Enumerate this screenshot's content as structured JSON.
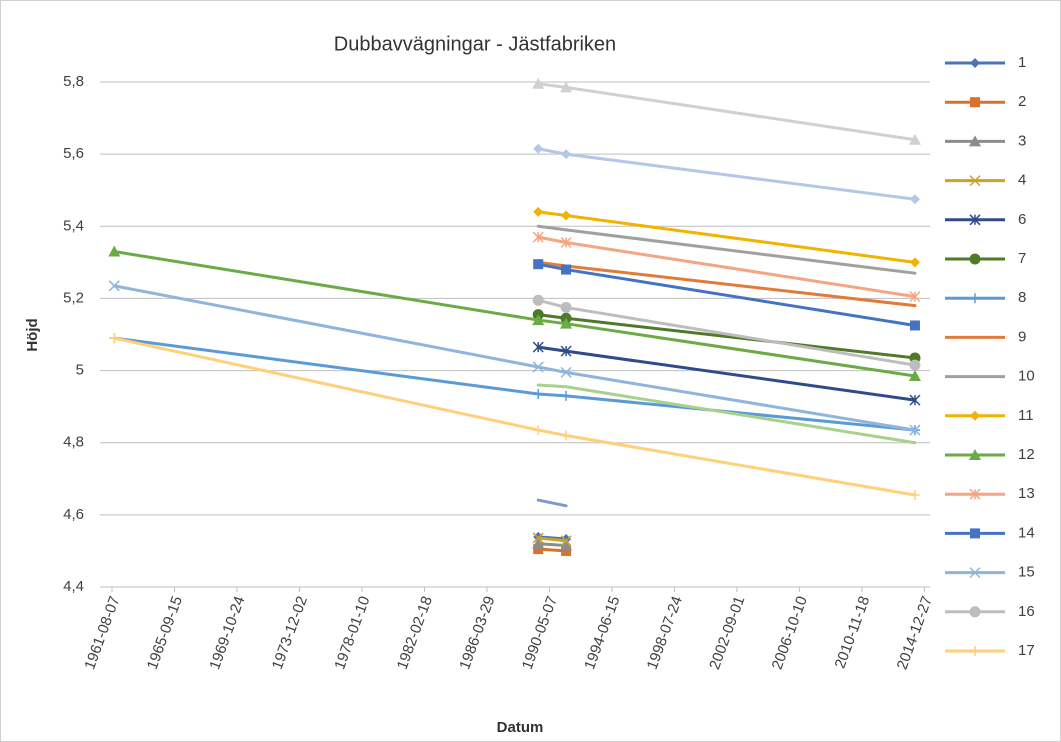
{
  "chart_data": {
    "type": "line",
    "title": "Dubbavvägningar - Jästfabriken",
    "x_label": "Datum",
    "y_label": "Höjd",
    "x": [
      "1961-10-01",
      "1989-08-10",
      "1991-06-10",
      "2014-05-14"
    ],
    "xlim": [
      "1961-08-07",
      "2015-05-10"
    ],
    "xticks": [
      "1961-08-07",
      "1965-09-15",
      "1969-10-24",
      "1973-12-02",
      "1978-01-10",
      "1982-02-18",
      "1986-03-29",
      "1990-05-07",
      "1994-06-15",
      "1998-07-24",
      "2002-09-01",
      "2006-10-10",
      "2010-11-18",
      "2014-12-27"
    ],
    "ylim": [
      4.4,
      5.8
    ],
    "yticks": [
      {
        "value": 4.4,
        "label": "4,4"
      },
      {
        "value": 4.6,
        "label": "4,6"
      },
      {
        "value": 4.8,
        "label": "4,8"
      },
      5,
      {
        "value": 5.2,
        "label": "5,2"
      },
      {
        "value": 5.4,
        "label": "5,4"
      },
      {
        "value": 5.6,
        "label": "5,6"
      },
      {
        "value": 5.8,
        "label": "5,8"
      }
    ],
    "grid": true,
    "legend": "right",
    "series": [
      {
        "name": "1",
        "color": "#4a74b8",
        "marker": "diamond",
        "values": [
          null,
          4.539,
          4.533,
          null
        ]
      },
      {
        "name": "2",
        "color": "#d9702c",
        "marker": "square",
        "values": [
          null,
          4.505,
          4.5,
          null
        ]
      },
      {
        "name": "3",
        "color": "#8c8c8c",
        "marker": "triangle",
        "values": [
          null,
          4.52,
          4.515,
          null
        ]
      },
      {
        "name": "4",
        "color": "#c9a227",
        "marker": "x",
        "values": [
          null,
          4.536,
          4.528,
          null
        ]
      },
      {
        "name": "6",
        "color": "#2f4b8a",
        "marker": "star",
        "values": [
          null,
          5.065,
          5.054,
          4.918
        ]
      },
      {
        "name": "7",
        "color": "#4f7a28",
        "marker": "circle",
        "values": [
          null,
          5.155,
          5.145,
          5.035
        ]
      },
      {
        "name": "8",
        "color": "#5b9bd5",
        "marker": "plus",
        "values": [
          5.09,
          4.935,
          4.93,
          4.835
        ]
      },
      {
        "name": "9",
        "color": "#e07b39",
        "marker": "none",
        "values": [
          null,
          5.3,
          5.29,
          5.18
        ]
      },
      {
        "name": "10",
        "color": "#a0a0a0",
        "marker": "none",
        "values": [
          null,
          5.4,
          5.39,
          5.27
        ]
      },
      {
        "name": "11",
        "color": "#f2b200",
        "marker": "diamond",
        "values": [
          null,
          5.44,
          5.43,
          5.3
        ]
      },
      {
        "name": "12",
        "color": "#6aab45",
        "marker": "triangle",
        "values": [
          5.33,
          5.14,
          5.13,
          4.985
        ]
      },
      {
        "name": "13",
        "color": "#f4a582",
        "marker": "star",
        "values": [
          null,
          5.37,
          5.355,
          5.205
        ]
      },
      {
        "name": "14",
        "color": "#4472c4",
        "marker": "square",
        "values": [
          null,
          5.295,
          5.28,
          5.125
        ]
      },
      {
        "name": "15",
        "color": "#8fb4de",
        "marker": "x",
        "values": [
          5.235,
          5.01,
          4.995,
          4.835
        ]
      },
      {
        "name": "16",
        "color": "#bdbdbd",
        "marker": "circle",
        "values": [
          null,
          5.195,
          5.175,
          5.015
        ]
      },
      {
        "name": "17",
        "color": "#ffcf7a",
        "marker": "plus",
        "values": [
          5.09,
          4.835,
          4.82,
          4.655
        ]
      },
      {
        "color": "#b4c7e7",
        "marker": "diamond",
        "values": [
          null,
          5.615,
          5.6,
          5.475
        ]
      },
      {
        "color": "#d0d0d0",
        "marker": "triangle",
        "values": [
          null,
          5.795,
          5.785,
          5.64
        ]
      },
      {
        "color": "#a9d18e",
        "marker": "none",
        "values": [
          null,
          4.96,
          4.955,
          4.8
        ]
      },
      {
        "color": "#7e97cf",
        "marker": "none",
        "values": [
          null,
          4.641,
          4.625,
          null
        ]
      }
    ]
  }
}
